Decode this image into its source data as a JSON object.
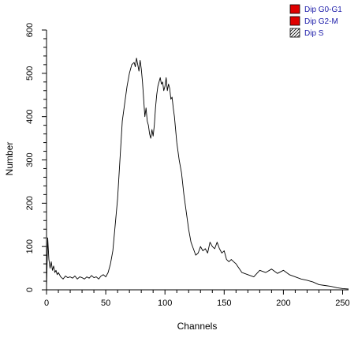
{
  "chart_data": {
    "type": "line",
    "title": "",
    "xlabel": "Channels",
    "ylabel": "Number",
    "xlim": [
      0,
      255
    ],
    "ylim": [
      0,
      600
    ],
    "x_ticks": [
      0,
      50,
      100,
      150,
      200,
      250
    ],
    "y_ticks": [
      0,
      100,
      200,
      300,
      400,
      500,
      600
    ],
    "grid": false,
    "legend_position": "top-right",
    "legend": [
      {
        "label": "Dip G0-G1",
        "fill": "#e00000",
        "pattern": "solid"
      },
      {
        "label": "Dip G2-M",
        "fill": "#e00000",
        "pattern": "solid"
      },
      {
        "label": "Dip S",
        "fill": "#ffffff",
        "pattern": "hatch"
      }
    ],
    "series": [
      {
        "color": "#000000",
        "x": [
          0,
          1,
          2,
          3,
          4,
          5,
          6,
          7,
          8,
          9,
          10,
          12,
          14,
          16,
          18,
          20,
          22,
          24,
          26,
          28,
          30,
          32,
          34,
          36,
          38,
          40,
          42,
          44,
          46,
          48,
          50,
          52,
          54,
          56,
          58,
          60,
          62,
          64,
          66,
          68,
          70,
          72,
          74,
          75,
          76,
          77,
          78,
          79,
          80,
          81,
          82,
          83,
          84,
          85,
          86,
          87,
          88,
          89,
          90,
          91,
          92,
          93,
          94,
          95,
          96,
          97,
          98,
          99,
          100,
          101,
          102,
          103,
          104,
          105,
          106,
          107,
          108,
          110,
          112,
          114,
          116,
          118,
          120,
          122,
          124,
          126,
          128,
          130,
          132,
          134,
          136,
          138,
          140,
          142,
          144,
          146,
          148,
          150,
          152,
          154,
          156,
          158,
          160,
          165,
          170,
          175,
          180,
          185,
          190,
          195,
          200,
          205,
          210,
          215,
          220,
          225,
          230,
          235,
          240,
          245,
          250,
          255
        ],
        "y": [
          5,
          120,
          70,
          50,
          65,
          45,
          55,
          40,
          45,
          35,
          40,
          30,
          25,
          32,
          28,
          30,
          27,
          32,
          25,
          30,
          28,
          25,
          30,
          27,
          33,
          28,
          30,
          25,
          32,
          35,
          30,
          40,
          60,
          90,
          150,
          210,
          300,
          390,
          430,
          470,
          500,
          520,
          525,
          515,
          535,
          520,
          505,
          530,
          510,
          480,
          440,
          400,
          420,
          390,
          380,
          360,
          350,
          370,
          355,
          380,
          420,
          450,
          470,
          480,
          490,
          475,
          480,
          460,
          470,
          490,
          460,
          475,
          465,
          440,
          445,
          420,
          400,
          340,
          300,
          270,
          220,
          180,
          140,
          110,
          95,
          80,
          85,
          100,
          90,
          95,
          85,
          110,
          100,
          95,
          110,
          95,
          85,
          90,
          70,
          65,
          70,
          65,
          60,
          40,
          35,
          30,
          45,
          40,
          48,
          38,
          45,
          35,
          30,
          25,
          22,
          18,
          12,
          10,
          8,
          5,
          3,
          2
        ]
      }
    ]
  }
}
